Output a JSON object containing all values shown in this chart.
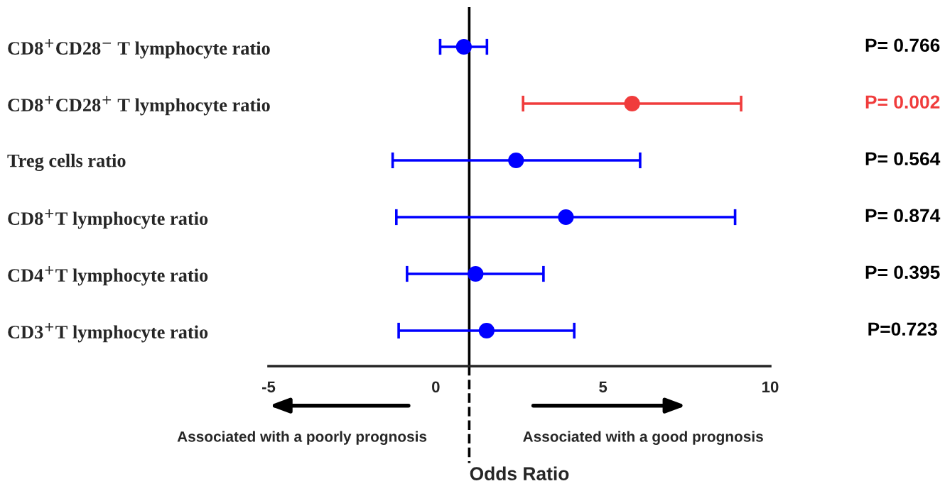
{
  "chart_data": {
    "type": "scatter",
    "xlabel": "Odds Ratio",
    "categories": [
      "CD8$^{+}$CD28$^{−}$ T lymphocyte ratio",
      "CD8$^{+}$CD28$^{+}$ T lymphocyte ratio",
      "Treg cells ratio",
      "CD8$^{+}$T lymphocyte ratio",
      "CD4$^{+}$T lymphocyte ratio",
      "CD3$^{+}$T lymphocyte ratio"
    ],
    "series": [
      {
        "color": "#0000ff",
        "values": [
          0.84,
          null,
          2.4,
          3.89,
          1.19,
          1.52
        ],
        "errors": [
          [
            0.13,
            1.53
          ],
          null,
          [
            -1.29,
            6.11
          ],
          [
            -1.18,
            8.95
          ],
          [
            -0.86,
            3.22
          ],
          [
            -1.11,
            4.14
          ]
        ]
      },
      {
        "color": "#f03c3c",
        "values": [
          null,
          5.87,
          null,
          null,
          null,
          null
        ],
        "errors": [
          null,
          [
            2.61,
            9.13
          ],
          null,
          null,
          null,
          null
        ]
      }
    ],
    "orientation": "horizontal",
    "xlim": [
      -5,
      10
    ],
    "xticks": [
      -5,
      0,
      5,
      10
    ],
    "marker": "circle",
    "grid": false,
    "legend": false,
    "ref_lines": [
      {
        "axis": "x",
        "value": 1,
        "color": "#000000",
        "line_style": "solid"
      }
    ],
    "annotations": [
      "P= 0.766",
      "P= 0.002",
      "P= 0.564",
      "P= 0.874",
      "P= 0.395",
      "P=0.723",
      "Associated with a poorly prognosis",
      "Associated with a good prognosis"
    ]
  }
}
